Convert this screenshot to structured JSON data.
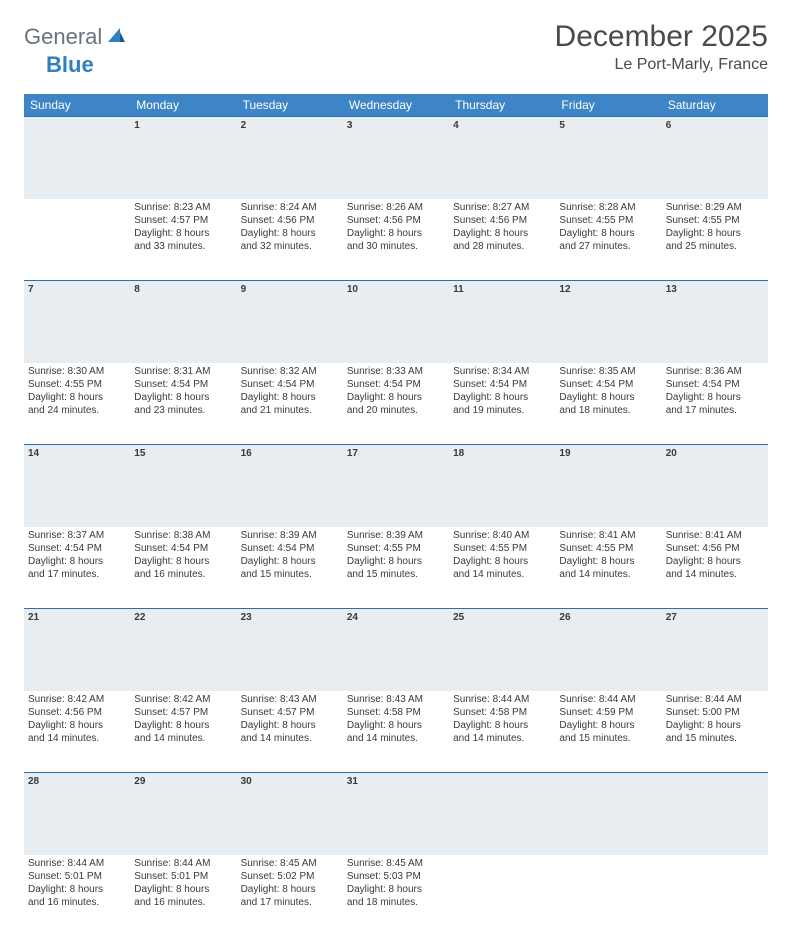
{
  "brand": {
    "part1": "General",
    "part2": "Blue"
  },
  "title": "December 2025",
  "location": "Le Port-Marly, France",
  "colors": {
    "header_bg": "#3d85c6",
    "header_text": "#ffffff",
    "daynum_bg": "#e8edf2",
    "row_border": "#2f6fa8",
    "logo_gray": "#6b7280",
    "logo_blue": "#2f7fc1"
  },
  "weekdays": [
    "Sunday",
    "Monday",
    "Tuesday",
    "Wednesday",
    "Thursday",
    "Friday",
    "Saturday"
  ],
  "weeks": [
    {
      "nums": [
        "",
        "1",
        "2",
        "3",
        "4",
        "5",
        "6"
      ],
      "cells": [
        null,
        {
          "sr": "Sunrise: 8:23 AM",
          "ss": "Sunset: 4:57 PM",
          "d1": "Daylight: 8 hours",
          "d2": "and 33 minutes."
        },
        {
          "sr": "Sunrise: 8:24 AM",
          "ss": "Sunset: 4:56 PM",
          "d1": "Daylight: 8 hours",
          "d2": "and 32 minutes."
        },
        {
          "sr": "Sunrise: 8:26 AM",
          "ss": "Sunset: 4:56 PM",
          "d1": "Daylight: 8 hours",
          "d2": "and 30 minutes."
        },
        {
          "sr": "Sunrise: 8:27 AM",
          "ss": "Sunset: 4:56 PM",
          "d1": "Daylight: 8 hours",
          "d2": "and 28 minutes."
        },
        {
          "sr": "Sunrise: 8:28 AM",
          "ss": "Sunset: 4:55 PM",
          "d1": "Daylight: 8 hours",
          "d2": "and 27 minutes."
        },
        {
          "sr": "Sunrise: 8:29 AM",
          "ss": "Sunset: 4:55 PM",
          "d1": "Daylight: 8 hours",
          "d2": "and 25 minutes."
        }
      ]
    },
    {
      "nums": [
        "7",
        "8",
        "9",
        "10",
        "11",
        "12",
        "13"
      ],
      "cells": [
        {
          "sr": "Sunrise: 8:30 AM",
          "ss": "Sunset: 4:55 PM",
          "d1": "Daylight: 8 hours",
          "d2": "and 24 minutes."
        },
        {
          "sr": "Sunrise: 8:31 AM",
          "ss": "Sunset: 4:54 PM",
          "d1": "Daylight: 8 hours",
          "d2": "and 23 minutes."
        },
        {
          "sr": "Sunrise: 8:32 AM",
          "ss": "Sunset: 4:54 PM",
          "d1": "Daylight: 8 hours",
          "d2": "and 21 minutes."
        },
        {
          "sr": "Sunrise: 8:33 AM",
          "ss": "Sunset: 4:54 PM",
          "d1": "Daylight: 8 hours",
          "d2": "and 20 minutes."
        },
        {
          "sr": "Sunrise: 8:34 AM",
          "ss": "Sunset: 4:54 PM",
          "d1": "Daylight: 8 hours",
          "d2": "and 19 minutes."
        },
        {
          "sr": "Sunrise: 8:35 AM",
          "ss": "Sunset: 4:54 PM",
          "d1": "Daylight: 8 hours",
          "d2": "and 18 minutes."
        },
        {
          "sr": "Sunrise: 8:36 AM",
          "ss": "Sunset: 4:54 PM",
          "d1": "Daylight: 8 hours",
          "d2": "and 17 minutes."
        }
      ]
    },
    {
      "nums": [
        "14",
        "15",
        "16",
        "17",
        "18",
        "19",
        "20"
      ],
      "cells": [
        {
          "sr": "Sunrise: 8:37 AM",
          "ss": "Sunset: 4:54 PM",
          "d1": "Daylight: 8 hours",
          "d2": "and 17 minutes."
        },
        {
          "sr": "Sunrise: 8:38 AM",
          "ss": "Sunset: 4:54 PM",
          "d1": "Daylight: 8 hours",
          "d2": "and 16 minutes."
        },
        {
          "sr": "Sunrise: 8:39 AM",
          "ss": "Sunset: 4:54 PM",
          "d1": "Daylight: 8 hours",
          "d2": "and 15 minutes."
        },
        {
          "sr": "Sunrise: 8:39 AM",
          "ss": "Sunset: 4:55 PM",
          "d1": "Daylight: 8 hours",
          "d2": "and 15 minutes."
        },
        {
          "sr": "Sunrise: 8:40 AM",
          "ss": "Sunset: 4:55 PM",
          "d1": "Daylight: 8 hours",
          "d2": "and 14 minutes."
        },
        {
          "sr": "Sunrise: 8:41 AM",
          "ss": "Sunset: 4:55 PM",
          "d1": "Daylight: 8 hours",
          "d2": "and 14 minutes."
        },
        {
          "sr": "Sunrise: 8:41 AM",
          "ss": "Sunset: 4:56 PM",
          "d1": "Daylight: 8 hours",
          "d2": "and 14 minutes."
        }
      ]
    },
    {
      "nums": [
        "21",
        "22",
        "23",
        "24",
        "25",
        "26",
        "27"
      ],
      "cells": [
        {
          "sr": "Sunrise: 8:42 AM",
          "ss": "Sunset: 4:56 PM",
          "d1": "Daylight: 8 hours",
          "d2": "and 14 minutes."
        },
        {
          "sr": "Sunrise: 8:42 AM",
          "ss": "Sunset: 4:57 PM",
          "d1": "Daylight: 8 hours",
          "d2": "and 14 minutes."
        },
        {
          "sr": "Sunrise: 8:43 AM",
          "ss": "Sunset: 4:57 PM",
          "d1": "Daylight: 8 hours",
          "d2": "and 14 minutes."
        },
        {
          "sr": "Sunrise: 8:43 AM",
          "ss": "Sunset: 4:58 PM",
          "d1": "Daylight: 8 hours",
          "d2": "and 14 minutes."
        },
        {
          "sr": "Sunrise: 8:44 AM",
          "ss": "Sunset: 4:58 PM",
          "d1": "Daylight: 8 hours",
          "d2": "and 14 minutes."
        },
        {
          "sr": "Sunrise: 8:44 AM",
          "ss": "Sunset: 4:59 PM",
          "d1": "Daylight: 8 hours",
          "d2": "and 15 minutes."
        },
        {
          "sr": "Sunrise: 8:44 AM",
          "ss": "Sunset: 5:00 PM",
          "d1": "Daylight: 8 hours",
          "d2": "and 15 minutes."
        }
      ]
    },
    {
      "nums": [
        "28",
        "29",
        "30",
        "31",
        "",
        "",
        ""
      ],
      "cells": [
        {
          "sr": "Sunrise: 8:44 AM",
          "ss": "Sunset: 5:01 PM",
          "d1": "Daylight: 8 hours",
          "d2": "and 16 minutes."
        },
        {
          "sr": "Sunrise: 8:44 AM",
          "ss": "Sunset: 5:01 PM",
          "d1": "Daylight: 8 hours",
          "d2": "and 16 minutes."
        },
        {
          "sr": "Sunrise: 8:45 AM",
          "ss": "Sunset: 5:02 PM",
          "d1": "Daylight: 8 hours",
          "d2": "and 17 minutes."
        },
        {
          "sr": "Sunrise: 8:45 AM",
          "ss": "Sunset: 5:03 PM",
          "d1": "Daylight: 8 hours",
          "d2": "and 18 minutes."
        },
        null,
        null,
        null
      ]
    }
  ]
}
